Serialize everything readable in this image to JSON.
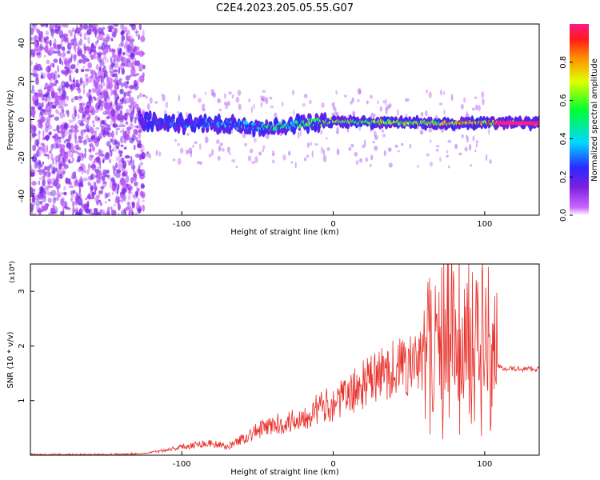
{
  "title": "C2E4.2023.205.05.55.G07",
  "chart_data": [
    {
      "type": "heatmap",
      "xlabel": "Height of straight line (km)",
      "ylabel": "Frequency (Hz)",
      "xlim": [
        -200,
        136
      ],
      "ylim": [
        -50,
        50
      ],
      "xticks": [
        -100,
        0,
        100
      ],
      "yticks": [
        -40,
        -20,
        0,
        20,
        40
      ],
      "colorbar": {
        "label": "Normalized spectral amplitude",
        "ticks": [
          "0.0",
          "0.2",
          "0.4",
          "0.6",
          "0.8"
        ],
        "range": [
          0,
          1
        ]
      },
      "ridge": [
        {
          "x": -128,
          "f": 0,
          "amp": 0.2
        },
        {
          "x": -110,
          "f": -2,
          "amp": 0.3
        },
        {
          "x": -80,
          "f": -2,
          "amp": 0.35
        },
        {
          "x": -60,
          "f": -3,
          "amp": 0.4
        },
        {
          "x": -40,
          "f": -4,
          "amp": 0.5
        },
        {
          "x": -20,
          "f": -2,
          "amp": 0.6
        },
        {
          "x": 0,
          "f": -1,
          "amp": 0.7
        },
        {
          "x": 40,
          "f": -1.5,
          "amp": 0.75
        },
        {
          "x": 80,
          "f": -2,
          "amp": 0.8
        },
        {
          "x": 100,
          "f": -1.5,
          "amp": 0.85
        },
        {
          "x": 136,
          "f": -2,
          "amp": 1.0
        }
      ]
    },
    {
      "type": "line",
      "xlabel": "Height of straight line (km)",
      "ylabel": "SNR (10 * v/v)",
      "yscale_note": "(x10⁴)",
      "xlim": [
        -200,
        136
      ],
      "ylim": [
        0,
        3.5
      ],
      "xticks": [
        -100,
        0,
        100
      ],
      "yticks": [
        1,
        2,
        3
      ],
      "series": [
        {
          "color": "#e8302a",
          "x": [
            -200,
            -150,
            -125,
            -110,
            -100,
            -90,
            -80,
            -70,
            -60,
            -50,
            -40,
            -30,
            -20,
            -10,
            0,
            10,
            20,
            30,
            40,
            50,
            60,
            70,
            80,
            90,
            100,
            106,
            110,
            120,
            136
          ],
          "y": [
            0.01,
            0.01,
            0.03,
            0.1,
            0.15,
            0.2,
            0.22,
            0.15,
            0.3,
            0.45,
            0.55,
            0.6,
            0.7,
            0.85,
            0.95,
            1.1,
            1.3,
            1.45,
            1.6,
            1.65,
            1.7,
            1.72,
            1.75,
            1.75,
            1.78,
            1.75,
            1.6,
            1.58,
            1.58
          ]
        }
      ]
    }
  ]
}
